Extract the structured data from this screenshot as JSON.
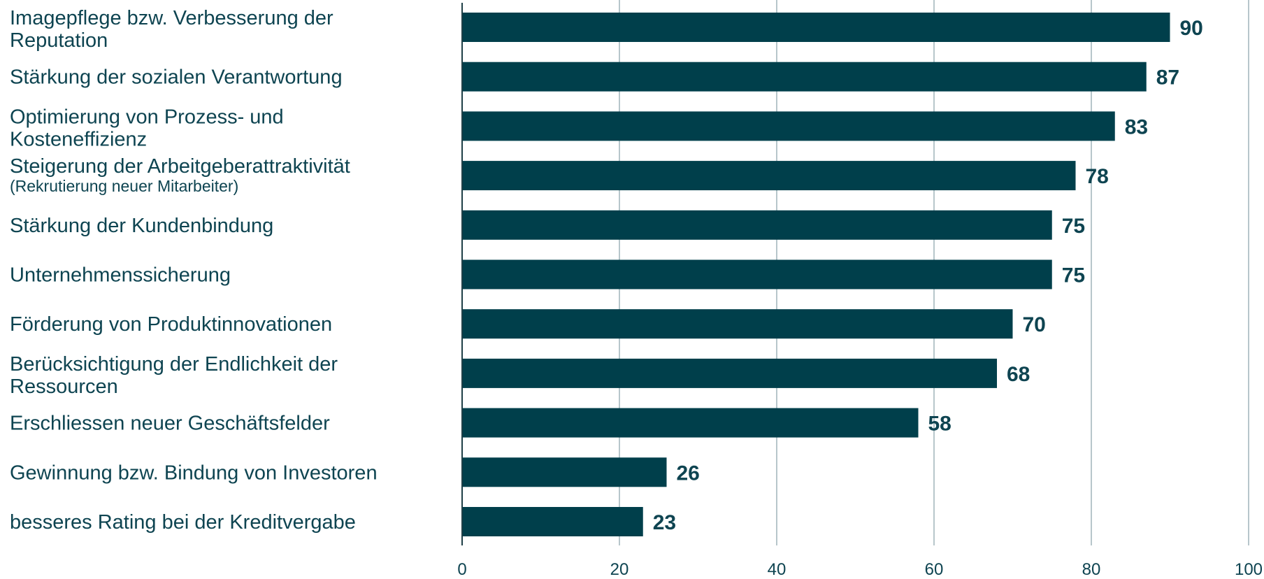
{
  "chart_data": {
    "type": "bar",
    "orientation": "horizontal",
    "categories": [
      [
        "Imagepflege bzw. Verbesserung der",
        "Reputation"
      ],
      [
        "Stärkung der sozialen Verantwortung"
      ],
      [
        "Optimierung von Prozess- und",
        "Kosteneffizienz"
      ],
      [
        "Steigerung der Arbeitgeberattraktivität"
      ],
      [
        "Stärkung der Kundenbindung"
      ],
      [
        "Unternehmenssicherung"
      ],
      [
        "Förderung von Produktinnovationen"
      ],
      [
        "Berücksichtigung der Endlichkeit der",
        "Ressourcen"
      ],
      [
        "Erschliessen neuer Geschäftsfelder"
      ],
      [
        "Gewinnung bzw. Bindung von Investoren"
      ],
      [
        "besseres Rating bei der Kreditvergabe"
      ]
    ],
    "category_notes": [
      "",
      "",
      "",
      "(Rekrutierung neuer Mitarbeiter)",
      "",
      "",
      "",
      "",
      "",
      "",
      ""
    ],
    "values": [
      90,
      87,
      83,
      78,
      75,
      75,
      70,
      68,
      58,
      26,
      23
    ],
    "xlim": [
      0,
      100
    ],
    "xticks": [
      0,
      20,
      40,
      60,
      80,
      100
    ],
    "xtick_labels": [
      "0",
      "20",
      "40",
      "60",
      "80",
      "100"
    ],
    "grid": "vertical",
    "title": "",
    "xlabel": "",
    "ylabel": "",
    "colors": {
      "bar": "#003f4b",
      "text": "#0e4451",
      "grid": "#b7c6cb",
      "axis": "#1f3f47"
    }
  }
}
